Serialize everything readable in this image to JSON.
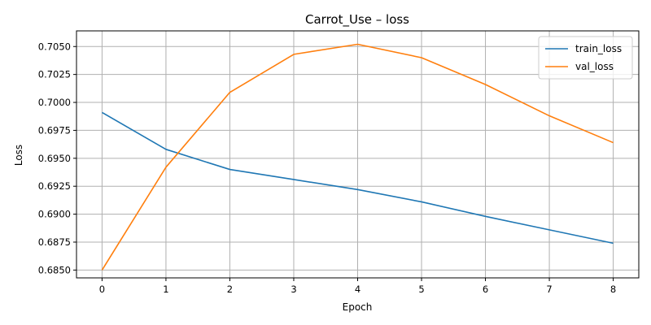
{
  "chart_data": {
    "type": "line",
    "title": "Carrot_Use – loss",
    "xlabel": "Epoch",
    "ylabel": "Loss",
    "x": [
      0,
      1,
      2,
      3,
      4,
      5,
      6,
      7,
      8
    ],
    "xticks": [
      "0",
      "1",
      "2",
      "3",
      "4",
      "5",
      "6",
      "7",
      "8"
    ],
    "yticks": [
      "0.6850",
      "0.6875",
      "0.6900",
      "0.6925",
      "0.6950",
      "0.6975",
      "0.7000",
      "0.7025",
      "0.7050"
    ],
    "xlim": [
      -0.4,
      8.4
    ],
    "ylim": [
      0.6843,
      0.7064
    ],
    "grid": true,
    "legend_position": "top-right",
    "series": [
      {
        "name": "train_loss",
        "color": "#1f77b4",
        "values": [
          0.6991,
          0.6958,
          0.694,
          0.6931,
          0.6922,
          0.6911,
          0.6898,
          0.6886,
          0.6874
        ]
      },
      {
        "name": "val_loss",
        "color": "#ff7f0e",
        "values": [
          0.685,
          0.6942,
          0.7009,
          0.7043,
          0.7052,
          0.704,
          0.7016,
          0.6988,
          0.6964
        ]
      }
    ]
  }
}
